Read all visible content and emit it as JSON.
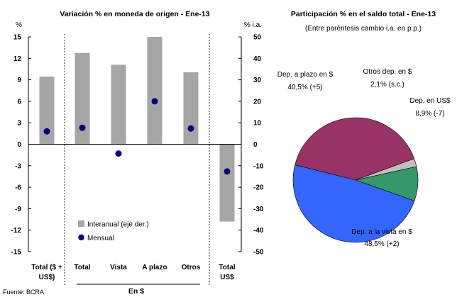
{
  "chart_data": [
    {
      "type": "bar",
      "title": "Variación % en moneda de origen - Ene-13",
      "y_left_unit": "%",
      "y_right_unit": "% i.a.",
      "y_left_range": [
        -15,
        15
      ],
      "y_left_ticks": [
        "15",
        "12",
        "9",
        "6",
        "3",
        "0",
        "-3",
        "-6",
        "-9",
        "-12",
        "-15"
      ],
      "y_right_range": [
        -50,
        50
      ],
      "y_right_ticks": [
        "50",
        "40",
        "30",
        "20",
        "10",
        "0",
        "-10",
        "-20",
        "-30",
        "-40",
        "-50"
      ],
      "categories": [
        "Total ($ + US$)",
        "Total",
        "Vista",
        "A plazo",
        "Otros",
        "Total US$"
      ],
      "group_label": "En $",
      "series": [
        {
          "name": "Interanual (eje der.)",
          "kind": "bar",
          "axis": "right",
          "color": "#a6a6a6",
          "values": [
            31.5,
            42.5,
            37.0,
            50.0,
            33.5,
            -36.0
          ]
        },
        {
          "name": "Mensual",
          "kind": "marker",
          "axis": "left",
          "color": "#000080",
          "values": [
            1.8,
            2.3,
            -1.3,
            6.0,
            2.2,
            -3.8
          ]
        }
      ]
    },
    {
      "type": "pie",
      "title": "Participación % en el saldo total - Ene-13",
      "subtitle": "(Entre paréntesis cambio i.a. en p.p.)",
      "slices": [
        {
          "name": "Dep. a la vista en $",
          "value": 48.5,
          "change": "48,5% (+2)",
          "color": "#3366ff"
        },
        {
          "name": "Dep. a plazo en $",
          "value": 40.5,
          "change": "40,5% (+5)",
          "color": "#993366"
        },
        {
          "name": "Otros dep. en $",
          "value": 2.1,
          "change": "2,1% (s.c.)",
          "color": "#c0c0c0"
        },
        {
          "name": "Dep. en US$",
          "value": 8.9,
          "change": "8,9% (-7)",
          "color": "#339966"
        }
      ]
    }
  ],
  "source": "Fuente: BCRA"
}
